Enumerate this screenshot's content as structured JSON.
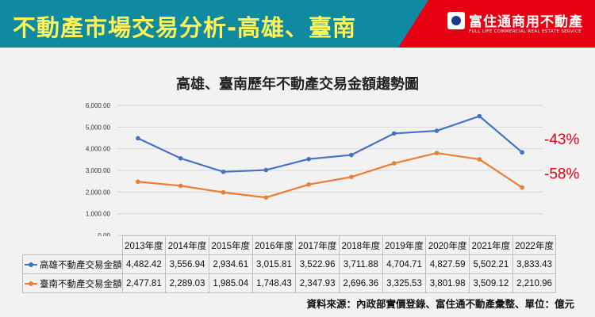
{
  "header": {
    "title": "不動產市場交易分析-高雄、臺南"
  },
  "logo": {
    "name": "富住通商用不動產",
    "subtitle": "FULL LIFE COMMERCIAL REAL ESTATE SERVICE"
  },
  "source_note": "資料來源：內政部實價登錄、富住通不動產彙整、單位：億元",
  "colors": {
    "header_red": "#e60012",
    "header_teal": "#0f8aa0",
    "title_yellow": "#fff35a",
    "series_1": "#4472c4",
    "series_2": "#ed7d31",
    "annotation": "#e60012"
  },
  "chart_data": {
    "type": "line",
    "title": "高雄、臺南歷年不動產交易金額趨勢圖",
    "categories": [
      "2013年度",
      "2014年度",
      "2015年度",
      "2016年度",
      "2017年度",
      "2018年度",
      "2019年度",
      "2020年度",
      "2021年度",
      "2022年度"
    ],
    "y_ticks": [
      "0.00",
      "1,000.00",
      "2,000.00",
      "3,000.00",
      "4,000.00",
      "5,000.00",
      "6,000.00"
    ],
    "ylim": [
      0,
      6000
    ],
    "grid": true,
    "series": [
      {
        "name": "高雄不動產交易金額",
        "values": [
          4482.42,
          3556.94,
          2934.61,
          3015.81,
          3522.96,
          3711.88,
          4704.71,
          4827.59,
          5502.21,
          3833.43
        ],
        "labels": [
          "4,482.42",
          "3,556.94",
          "2,934.61",
          "3,015.81",
          "3,522.96",
          "3,711.88",
          "4,704.71",
          "4,827.59",
          "5,502.21",
          "3,833.43"
        ]
      },
      {
        "name": "臺南不動產交易金額",
        "values": [
          2477.81,
          2289.03,
          1985.04,
          1748.43,
          2347.93,
          2696.36,
          3325.53,
          3801.98,
          3509.12,
          2210.96
        ],
        "labels": [
          "2,477.81",
          "2,289.03",
          "1,985.04",
          "1,748.43",
          "2,347.93",
          "2,696.36",
          "3,325.53",
          "3,801.98",
          "3,509.12",
          "2,210.96"
        ]
      }
    ],
    "annotations": [
      "-43%",
      "-58%"
    ]
  }
}
